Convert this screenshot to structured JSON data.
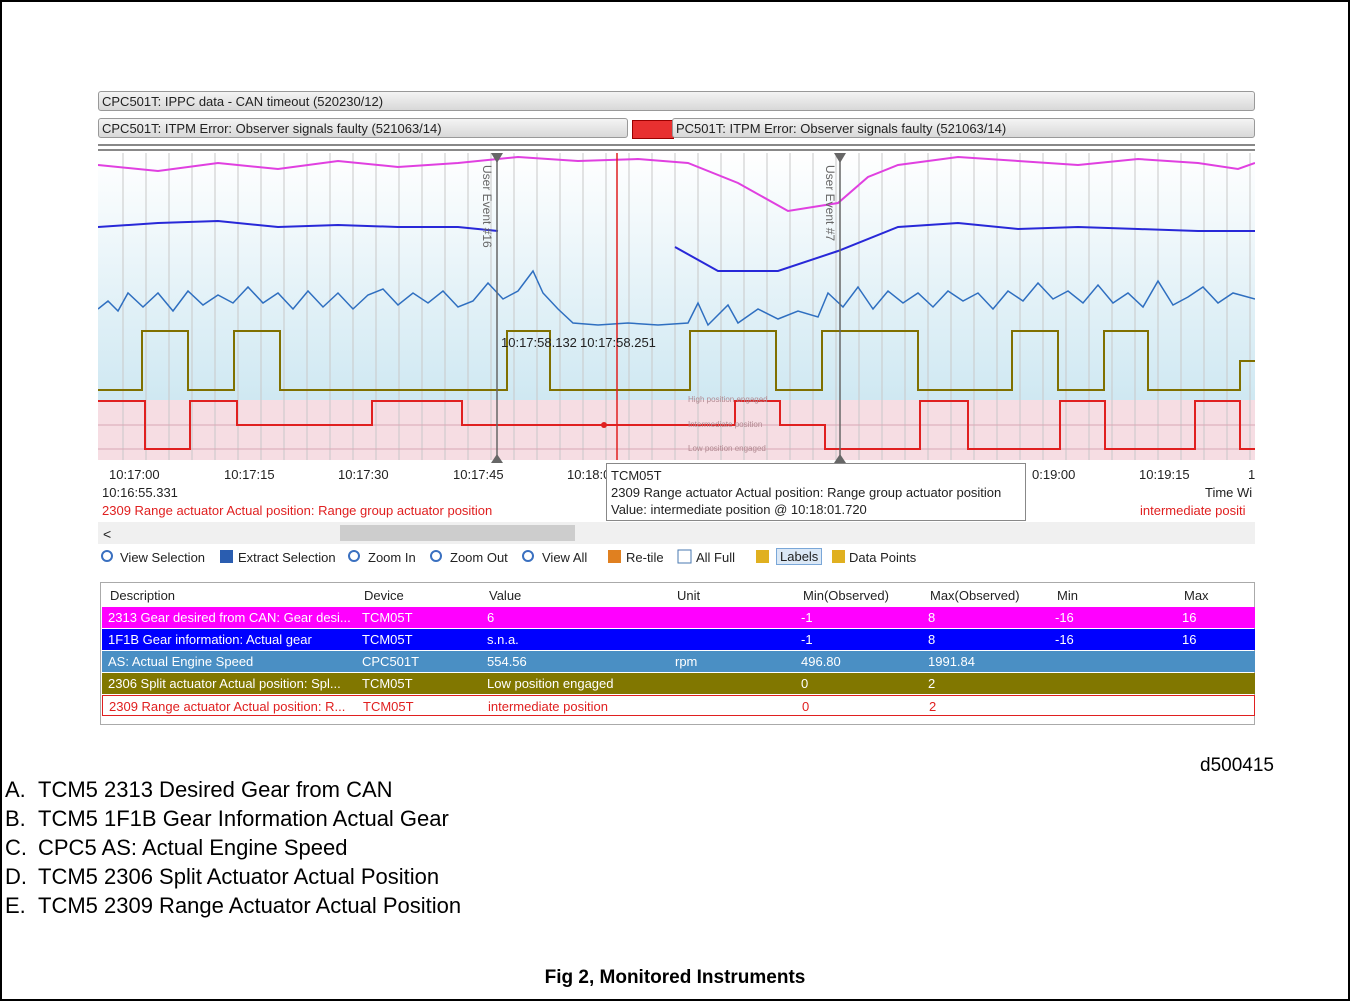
{
  "status_bars": [
    "CPC501T: IPPC data - CAN timeout (520230/12)",
    "CPC501T: ITPM Error: Observer signals faulty (521063/14)",
    "PC501T: ITPM Error: Observer signals faulty (521063/14)"
  ],
  "plot": {
    "events": [
      "User Event #16",
      "User Event #7"
    ],
    "cursor_times": [
      "10:17:58.132",
      "10:17:58.251"
    ],
    "range_labels": [
      "High position engaged",
      "Intermediate position",
      "Low position engaged"
    ],
    "time_labels": [
      "10:17:00",
      "10:17:15",
      "10:17:30",
      "10:17:45",
      "10:18:0",
      "0:19:00",
      "10:19:15",
      "1"
    ]
  },
  "status": {
    "start_time": "10:16:55.331",
    "signal": "2309 Range actuator Actual position: Range group actuator position",
    "time_window": "Time Wi",
    "current_value": "intermediate positi"
  },
  "tooltip": {
    "device": "TCM05T",
    "signal": "2309 Range actuator Actual position: Range group actuator position",
    "value": "Value: intermediate position @ 10:18:01.720"
  },
  "toolbar": [
    "View Selection",
    "Extract Selection",
    "Zoom In",
    "Zoom Out",
    "View All",
    "Re-tile",
    "All Full",
    "Labels",
    "Data Points"
  ],
  "table": {
    "headers": [
      "Description",
      "Device",
      "Value",
      "Unit",
      "Min(Observed)",
      "Max(Observed)",
      "Min",
      "Max"
    ],
    "rows": [
      {
        "description": "2313 Gear desired from CAN: Gear desi...",
        "device": "TCM05T",
        "value": "6",
        "min_observed": "-1",
        "max_observed": "8",
        "min": "-16",
        "max": "16"
      },
      {
        "description": "1F1B Gear information: Actual gear",
        "device": "TCM05T",
        "value": "s.n.a.",
        "min_observed": "-1",
        "max_observed": "8",
        "min": "-16",
        "max": "16"
      },
      {
        "description": "AS: Actual Engine Speed",
        "device": "CPC501T",
        "value": "554.56",
        "unit": "rpm",
        "min_observed": "496.80",
        "max_observed": "1991.84"
      },
      {
        "description": "2306 Split actuator Actual position: Spl...",
        "device": "TCM05T",
        "value": "Low position engaged",
        "min_observed": "0",
        "max_observed": "2"
      },
      {
        "description": "2309 Range actuator Actual position: R...",
        "device": "TCM05T",
        "value": "intermediate position",
        "min_observed": "0",
        "max_observed": "2"
      }
    ]
  },
  "figure_id": "d500415",
  "legend": [
    {
      "letter": "A.",
      "text": "TCM5 2313 Desired Gear from CAN"
    },
    {
      "letter": "B.",
      "text": "TCM5 1F1B Gear Information Actual Gear"
    },
    {
      "letter": "C.",
      "text": "CPC5 AS: Actual Engine Speed"
    },
    {
      "letter": "D.",
      "text": "TCM5 2306 Split Actuator Actual Position"
    },
    {
      "letter": "E.",
      "text": "TCM5 2309 Range Actuator Actual Position"
    }
  ],
  "caption": "Fig 2, Monitored Instruments"
}
